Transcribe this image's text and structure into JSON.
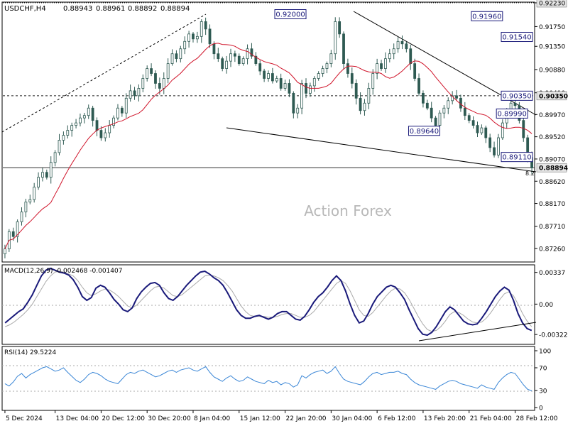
{
  "chart_data": {
    "type": "candlestick",
    "header": {
      "symbol": "USDCHF,H4",
      "ohlc": [
        "0.88943",
        "0.88961",
        "0.88892",
        "0.88894"
      ]
    },
    "watermark": "Action Forex",
    "price_panel": {
      "ylim": [
        0.87,
        0.9223
      ],
      "ticks": [
        "0.92230",
        "0.91750",
        "0.91350",
        "0.90880",
        "0.90410",
        "0.89970",
        "0.89520",
        "0.89070",
        "0.88620",
        "0.88170",
        "0.87710",
        "0.87260"
      ],
      "tick_values": [
        0.9223,
        0.9175,
        0.9135,
        0.9088,
        0.9041,
        0.8997,
        0.8952,
        0.8907,
        0.8862,
        0.8817,
        0.8771,
        0.8726
      ],
      "levels": [
        {
          "label": "0.92230",
          "value": 0.9223,
          "style": "dotted"
        },
        {
          "label": "0.90350",
          "value": 0.9035,
          "style": "dashed"
        },
        {
          "label": "0.88894",
          "value": 0.88894,
          "style": "solid"
        }
      ],
      "annotations": [
        {
          "label": "0.92000",
          "x": 72,
          "value": 0.92
        },
        {
          "label": "0.91960",
          "x": 119,
          "value": 0.9196
        },
        {
          "label": "0.91540",
          "x": 140,
          "value": 0.9154
        },
        {
          "label": "0.89990",
          "x": 125,
          "value": 0.8999
        },
        {
          "label": "0.89640",
          "x": 104,
          "value": 0.8964
        },
        {
          "label": "0.90350",
          "x": 177,
          "value": 0.9035
        },
        {
          "label": "0.89110",
          "x": 168,
          "value": 0.8911
        }
      ],
      "small_label": "8.2",
      "close": [
        0.8725,
        0.876,
        0.875,
        0.878,
        0.88,
        0.882,
        0.8825,
        0.885,
        0.887,
        0.888,
        0.887,
        0.89,
        0.892,
        0.8945,
        0.8955,
        0.8965,
        0.8975,
        0.898,
        0.899,
        0.8995,
        0.901,
        0.8985,
        0.8965,
        0.895,
        0.896,
        0.8975,
        0.899,
        0.901,
        0.9,
        0.903,
        0.9045,
        0.9035,
        0.905,
        0.907,
        0.909,
        0.908,
        0.906,
        0.905,
        0.907,
        0.91,
        0.912,
        0.911,
        0.913,
        0.9145,
        0.916,
        0.915,
        0.9155,
        0.9185,
        0.917,
        0.914,
        0.912,
        0.911,
        0.909,
        0.9105,
        0.912,
        0.9115,
        0.91,
        0.911,
        0.913,
        0.9115,
        0.91,
        0.9085,
        0.907,
        0.908,
        0.9065,
        0.907,
        0.905,
        0.906,
        0.904,
        0.9,
        0.901,
        0.906,
        0.904,
        0.9055,
        0.907,
        0.908,
        0.909,
        0.91,
        0.912,
        0.9185,
        0.916,
        0.91,
        0.908,
        0.906,
        0.903,
        0.9005,
        0.902,
        0.905,
        0.908,
        0.91,
        0.909,
        0.911,
        0.912,
        0.913,
        0.9145,
        0.914,
        0.913,
        0.91,
        0.907,
        0.904,
        0.902,
        0.901,
        0.899,
        0.8975,
        0.9,
        0.901,
        0.9025,
        0.9035,
        0.903,
        0.901,
        0.8995,
        0.8985,
        0.8975,
        0.896,
        0.897,
        0.895,
        0.893,
        0.8915,
        0.895,
        0.898,
        0.9005,
        0.902,
        0.9015,
        0.8985,
        0.895,
        0.891,
        0.8889
      ]
    },
    "macd_panel": {
      "label": "MACD(12,26,9) -0.002468 -0.001407",
      "ylim": [
        -0.0042,
        0.0041
      ],
      "ticks": [
        "0.00337",
        "0.00",
        "-0.003227"
      ],
      "tick_values": [
        0.00337,
        0.0,
        -0.003227
      ],
      "macd": [
        -0.002,
        -0.0016,
        -0.0012,
        -0.0008,
        -0.0005,
        0.0002,
        0.001,
        0.002,
        0.003,
        0.0036,
        0.0038,
        0.0036,
        0.0034,
        0.0033,
        0.0031,
        0.0026,
        0.0018,
        0.0008,
        0.0004,
        0.0007,
        0.0017,
        0.002,
        0.0018,
        0.0012,
        0.0005,
        0.0,
        -0.0006,
        -0.0008,
        -0.0004,
        0.0006,
        0.0013,
        0.0018,
        0.0022,
        0.0023,
        0.002,
        0.0012,
        0.0006,
        0.0004,
        0.0008,
        0.0014,
        0.002,
        0.0025,
        0.003,
        0.0034,
        0.0035,
        0.0032,
        0.0028,
        0.0025,
        0.002,
        0.0012,
        0.0003,
        -0.0006,
        -0.0012,
        -0.0015,
        -0.0015,
        -0.0013,
        -0.0012,
        -0.0014,
        -0.0016,
        -0.0014,
        -0.001,
        -0.0008,
        -0.0008,
        -0.0012,
        -0.0016,
        -0.0017,
        -0.0013,
        -0.0006,
        0.0002,
        0.0008,
        0.0012,
        0.0018,
        0.0025,
        0.003,
        0.0025,
        0.0014,
        0.0,
        -0.0012,
        -0.002,
        -0.0018,
        -0.001,
        0.0,
        0.0008,
        0.0013,
        0.0018,
        0.002,
        0.0018,
        0.0012,
        0.0005,
        -0.0006,
        -0.0016,
        -0.0026,
        -0.0032,
        -0.0033,
        -0.003,
        -0.0024,
        -0.0016,
        -0.0008,
        -0.0003,
        -0.0006,
        -0.0012,
        -0.0018,
        -0.0021,
        -0.0022,
        -0.0021,
        -0.0015,
        -0.0008,
        0.0,
        0.0008,
        0.0014,
        0.0018,
        0.0015,
        0.0004,
        -0.001,
        -0.002,
        -0.0026,
        -0.0028
      ],
      "signal": [
        -0.0024,
        -0.0022,
        -0.0019,
        -0.0015,
        -0.0011,
        -0.0006,
        0.0,
        0.0008,
        0.0016,
        0.0024,
        0.003,
        0.0034,
        0.0035,
        0.0034,
        0.0032,
        0.003,
        0.0025,
        0.0018,
        0.0012,
        0.0009,
        0.0011,
        0.0014,
        0.0016,
        0.0015,
        0.0012,
        0.0008,
        0.0003,
        -0.0002,
        -0.0004,
        -0.0001,
        0.0004,
        0.0009,
        0.0014,
        0.0018,
        0.0019,
        0.0017,
        0.0013,
        0.0009,
        0.0008,
        0.001,
        0.0014,
        0.0018,
        0.0022,
        0.0026,
        0.003,
        0.0031,
        0.003,
        0.0028,
        0.0025,
        0.002,
        0.0014,
        0.0006,
        -0.0002,
        -0.0008,
        -0.0012,
        -0.0013,
        -0.0013,
        -0.0013,
        -0.0014,
        -0.0014,
        -0.0013,
        -0.0011,
        -0.001,
        -0.001,
        -0.0012,
        -0.0014,
        -0.0014,
        -0.0012,
        -0.0008,
        -0.0002,
        0.0004,
        0.001,
        0.0016,
        0.0022,
        0.0025,
        0.0022,
        0.0014,
        0.0004,
        -0.0006,
        -0.0012,
        -0.0013,
        -0.0009,
        -0.0003,
        0.0003,
        0.0009,
        0.0014,
        0.0017,
        0.0016,
        0.0012,
        0.0005,
        -0.0004,
        -0.0013,
        -0.0021,
        -0.0027,
        -0.0029,
        -0.0028,
        -0.0024,
        -0.0018,
        -0.0011,
        -0.0008,
        -0.0009,
        -0.0012,
        -0.0016,
        -0.0019,
        -0.002,
        -0.0019,
        -0.0015,
        -0.0009,
        -0.0002,
        0.0005,
        0.0011,
        0.0013,
        0.0009,
        0.0,
        -0.001,
        -0.0018,
        -0.0024
      ]
    },
    "rsi_panel": {
      "label": "RSI(14) 29.5224",
      "ylim": [
        0,
        100
      ],
      "ticks": [
        "100",
        "70",
        "30",
        "0"
      ],
      "tick_values": [
        100,
        70,
        30,
        0
      ],
      "rsi": [
        42,
        38,
        45,
        55,
        60,
        52,
        58,
        62,
        66,
        70,
        72,
        68,
        64,
        66,
        70,
        62,
        55,
        48,
        44,
        50,
        58,
        62,
        60,
        56,
        50,
        46,
        44,
        42,
        50,
        58,
        62,
        60,
        64,
        66,
        62,
        58,
        54,
        56,
        60,
        64,
        66,
        62,
        66,
        68,
        70,
        66,
        64,
        68,
        72,
        62,
        54,
        50,
        46,
        52,
        56,
        50,
        46,
        48,
        54,
        50,
        46,
        44,
        42,
        48,
        44,
        46,
        40,
        44,
        42,
        36,
        40,
        56,
        52,
        58,
        62,
        64,
        66,
        60,
        64,
        72,
        60,
        50,
        46,
        44,
        42,
        40,
        46,
        54,
        60,
        62,
        58,
        60,
        62,
        62,
        64,
        60,
        58,
        50,
        44,
        40,
        38,
        36,
        34,
        32,
        38,
        42,
        46,
        48,
        46,
        42,
        40,
        38,
        36,
        34,
        40,
        36,
        34,
        32,
        44,
        52,
        58,
        62,
        60,
        50,
        40,
        32,
        29.5
      ]
    },
    "x_axis": {
      "labels": [
        "5 Dec 2024",
        "13 Dec 04:00",
        "20 Dec 12:00",
        "30 Dec 20:00",
        "8 Jan 04:00",
        "15 Jan 12:00",
        "22 Jan 20:00",
        "30 Jan 04:00",
        "6 Feb 12:00",
        "13 Feb 20:00",
        "21 Feb 04:00",
        "28 Feb 12:00"
      ],
      "label_index": [
        0,
        12,
        23,
        34,
        45,
        56,
        67,
        78,
        89,
        100,
        111,
        122
      ]
    }
  }
}
